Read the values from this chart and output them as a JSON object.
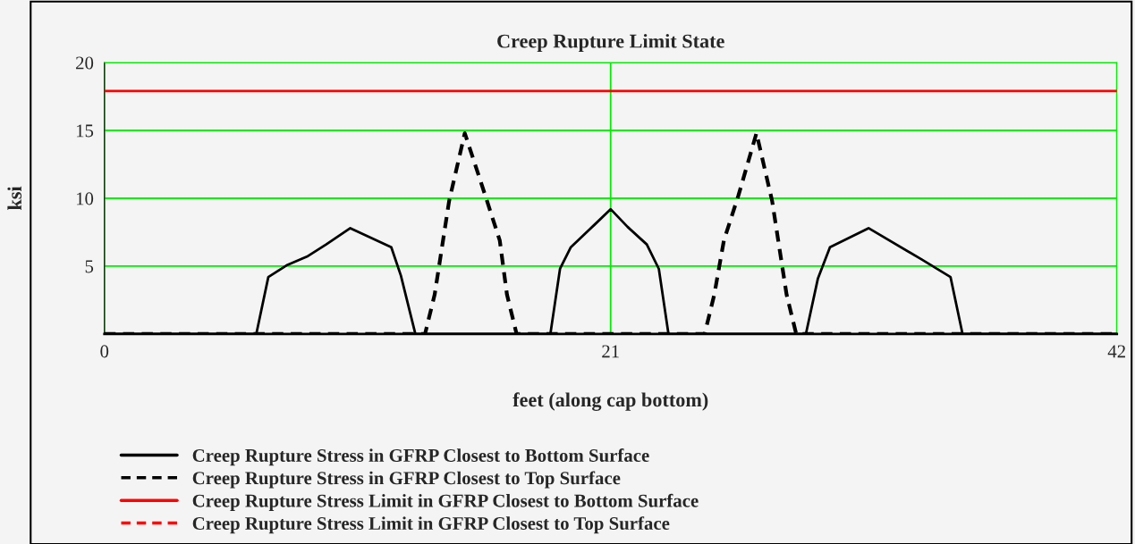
{
  "chart_data": {
    "type": "line",
    "title": "Creep Rupture Limit State",
    "xlabel": "feet (along cap bottom)",
    "ylabel": "ksi",
    "xlim": [
      0,
      42
    ],
    "xticks": [
      0,
      21,
      42
    ],
    "ylim": [
      0,
      20
    ],
    "yticks": [
      5,
      10,
      15,
      20
    ],
    "grid": true,
    "legend": "bottom",
    "series": [
      {
        "name": "Creep Rupture Stress in GFRP Closest to Bottom Surface",
        "color": "#000000",
        "line_style": "solid",
        "x": [
          0,
          6.3,
          6.8,
          7.6,
          8.4,
          9.2,
          10.2,
          11.9,
          12.3,
          12.9,
          18.5,
          18.9,
          19.35,
          20.3,
          21,
          21.7,
          22.5,
          23.0,
          23.4,
          29.1,
          29.6,
          30.1,
          31.7,
          33.9,
          35.1,
          35.6,
          42
        ],
        "values": [
          0,
          0,
          4.2,
          5.1,
          5.7,
          6.6,
          7.8,
          6.4,
          4.3,
          0,
          0,
          4.8,
          6.4,
          8.0,
          9.2,
          7.9,
          6.6,
          4.8,
          0,
          0,
          4.1,
          6.4,
          7.8,
          5.5,
          4.2,
          0,
          0
        ]
      },
      {
        "name": "Creep Rupture Stress in GFRP Closest to Top Surface",
        "color": "#000000",
        "line_style": "dashed",
        "x": [
          0,
          13.3,
          13.7,
          14.3,
          14.95,
          15.8,
          16.4,
          16.7,
          17.1,
          24.9,
          25.3,
          25.7,
          26.3,
          27.05,
          27.7,
          28.3,
          28.7,
          42
        ],
        "values": [
          0,
          0,
          2.9,
          9.8,
          14.8,
          10.2,
          6.9,
          2.9,
          0,
          0,
          2.9,
          6.9,
          10.2,
          14.8,
          9.8,
          2.9,
          0,
          0
        ]
      },
      {
        "name": "Creep Rupture Stress Limit in GFRP Closest to Bottom Surface",
        "color": "#ff0000",
        "line_style": "solid",
        "x": [
          0,
          42
        ],
        "values": [
          17.9,
          17.9
        ]
      },
      {
        "name": "Creep Rupture Stress Limit in GFRP Closest to Top Surface",
        "color": "#ff0000",
        "line_style": "dashed"
      }
    ]
  }
}
